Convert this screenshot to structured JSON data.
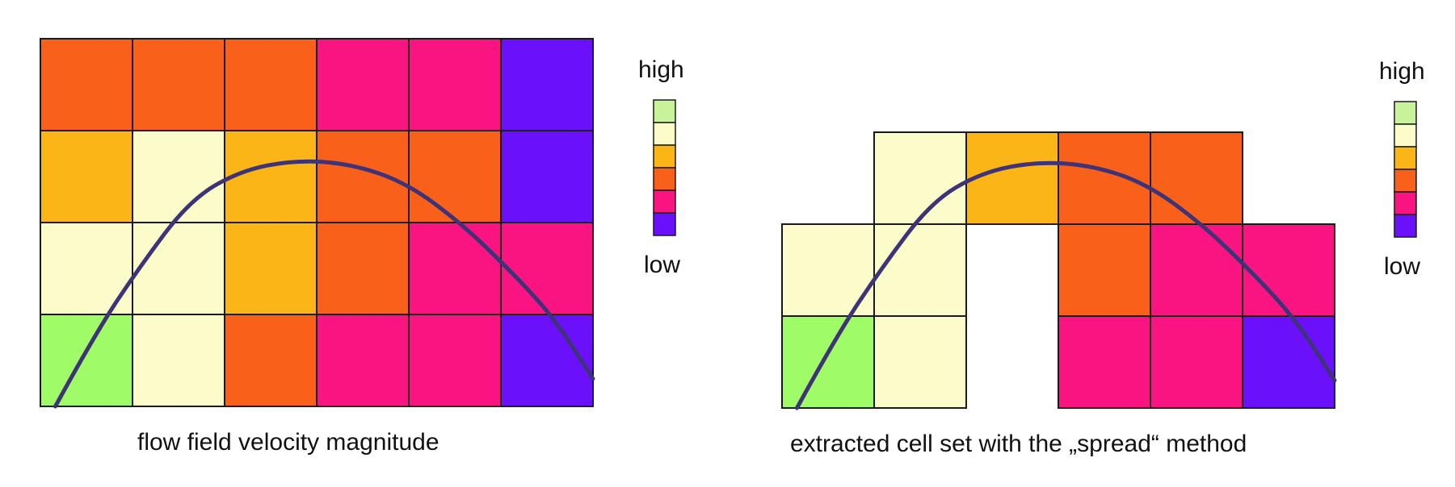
{
  "colors": {
    "very_high": "#c9f39a",
    "high": "#fcfccb",
    "mid_high": "#fbb516",
    "mid": "#f9611b",
    "mid_low": "#fa1481",
    "low": "#6a10fa",
    "green_cell": "#9ffc67",
    "grid_stroke": "#1a1a1a",
    "curve": "#3f3377"
  },
  "left_panel": {
    "caption": "flow field velocity magnitude",
    "grid": [
      [
        "mid",
        "mid",
        "mid",
        "mid_low",
        "mid_low",
        "low"
      ],
      [
        "mid_high",
        "high",
        "mid_high",
        "mid",
        "mid",
        "low"
      ],
      [
        "high",
        "high",
        "mid_high",
        "mid",
        "mid_low",
        "mid_low"
      ],
      [
        "green_cell",
        "high",
        "mid",
        "mid_low",
        "mid_low",
        "low"
      ]
    ],
    "legend": {
      "top_label": "high",
      "bottom_label": "low"
    }
  },
  "right_panel": {
    "caption": "extracted cell set with the „spread“ method",
    "grid": [
      [
        null,
        null,
        null,
        null,
        null,
        null
      ],
      [
        null,
        "high",
        "mid_high",
        "mid",
        "mid",
        null
      ],
      [
        "high",
        "high",
        null,
        "mid",
        "mid_low",
        "mid_low"
      ],
      [
        "green_cell",
        "high",
        null,
        "mid_low",
        "mid_low",
        "low"
      ]
    ],
    "legend": {
      "top_label": "high",
      "bottom_label": "low"
    }
  },
  "legend_scale": [
    "very_high",
    "high",
    "mid_high",
    "mid",
    "mid_low",
    "low"
  ]
}
